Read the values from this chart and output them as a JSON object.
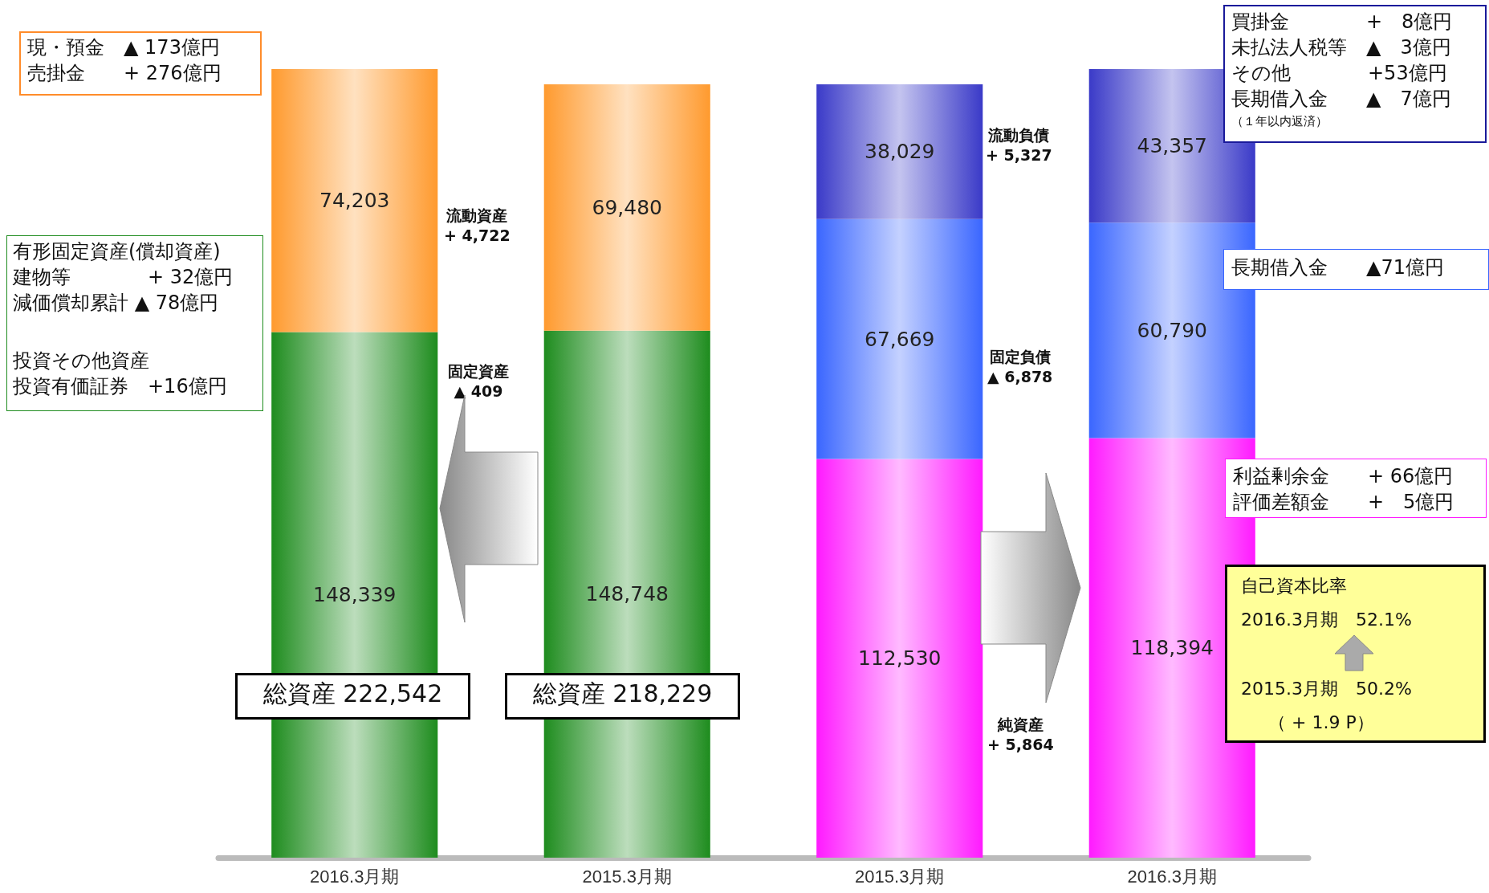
{
  "chart_data": {
    "type": "bar",
    "stacked": true,
    "grid": false,
    "categories": [
      "2016.3月期",
      "2015.3月期",
      "2015.3月期",
      "2016.3月期"
    ],
    "series": [
      {
        "color": "#1e8c1e",
        "values": [
          148339,
          148748,
          null,
          null
        ],
        "value_labels": [
          "148,339",
          "148,748",
          null,
          null
        ]
      },
      {
        "color": "#ff9a2e",
        "values": [
          74203,
          69480,
          null,
          null
        ],
        "value_labels": [
          "74,203",
          "69,480",
          null,
          null
        ]
      },
      {
        "color": "#ff1aff",
        "values": [
          null,
          null,
          112530,
          118394
        ],
        "value_labels": [
          null,
          null,
          "112,530",
          "118,394"
        ]
      },
      {
        "color": "#3a66ff",
        "values": [
          null,
          null,
          67669,
          60790
        ],
        "value_labels": [
          null,
          null,
          "67,669",
          "60,790"
        ]
      },
      {
        "color": "#3a3ac8",
        "values": [
          null,
          null,
          38029,
          43357
        ],
        "value_labels": [
          null,
          null,
          "38,029",
          "43,357"
        ]
      }
    ],
    "annotations": [
      "現・預金　▲ 173億円",
      "売掛金　　+ 276億円",
      "有形固定資産(償却資産)",
      "建物等　　　　+ 32億円",
      "減価償却累計 ▲ 78億円",
      "投資その他資産",
      "投資有価証券　+16億円",
      "流動資産\n+ 4,722",
      "固定資産\n▲ 409",
      "総資産 222,542",
      "総資産 218,229",
      "流動負債\n+ 5,327",
      "固定負債\n▲ 6,878",
      "純資産\n+ 5,864",
      "買掛金　　　　+　8億円",
      "未払法人税等　▲　3億円",
      "その他　　　　+53億円",
      "長期借入金　　▲　7億円",
      "（１年以内返済）",
      "長期借入金　　▲71億円",
      "利益剰余金　　+ 66億円",
      "評価差額金　　+　5億円",
      "自己資本比率",
      "2016.3月期　52.1%",
      "2015.3月期　50.2%",
      "（ + 1.9 P）"
    ]
  }
}
